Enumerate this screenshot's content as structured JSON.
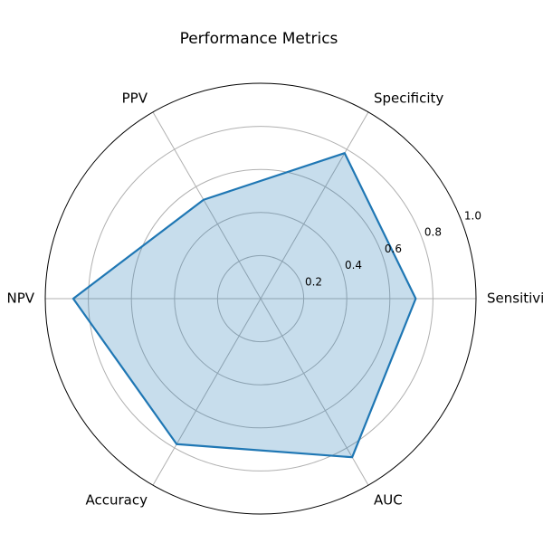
{
  "chart_data": {
    "type": "radar",
    "title": "Performance Metrics",
    "categories": [
      "Sensitivity",
      "Specificity",
      "PPV",
      "NPV",
      "Accuracy",
      "AUC"
    ],
    "series": [
      {
        "values": [
          0.72,
          0.78,
          0.53,
          0.87,
          0.78,
          0.85
        ]
      }
    ],
    "rlim": [
      0,
      1.0
    ],
    "r_ticks": [
      0.2,
      0.4,
      0.6,
      0.8,
      1.0
    ],
    "r_tick_labels": [
      "0.2",
      "0.4",
      "0.6",
      "0.8",
      "1.0"
    ],
    "grid": true,
    "colors": {
      "line": "#1f77b4",
      "fill": "#1f77b4",
      "grid": "#b0b0b0",
      "outer": "#000000"
    }
  }
}
